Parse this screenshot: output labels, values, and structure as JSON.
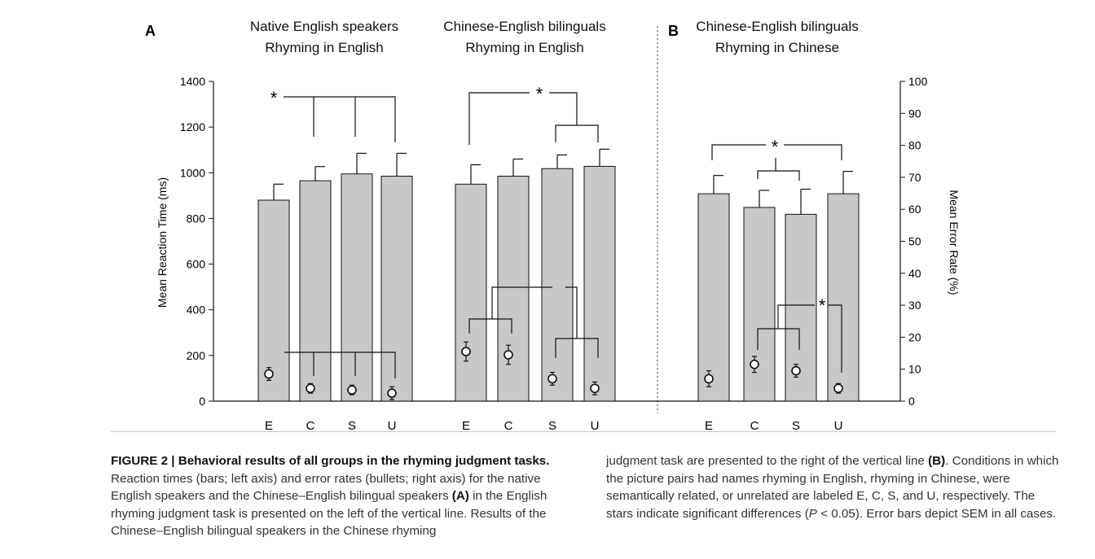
{
  "figure": {
    "panel_a": "A",
    "panel_b": "B",
    "group_titles": [
      {
        "line1": "Native English speakers",
        "line2": "Rhyming in English"
      },
      {
        "line1": "Chinese-English bilinguals",
        "line2": "Rhyming in English"
      },
      {
        "line1": "Chinese-English bilinguals",
        "line2": "Rhyming in Chinese"
      }
    ],
    "left_axis_label": "Mean Reaction Time (ms)",
    "right_axis_label": "Mean Error Rate (%)",
    "significance_marker": "*"
  },
  "chart_data": {
    "type": "bar",
    "left_axis": {
      "label": "Mean Reaction Time (ms)",
      "ylim": [
        0,
        1400
      ],
      "ticks": [
        0,
        200,
        400,
        600,
        800,
        1000,
        1200,
        1400
      ]
    },
    "right_axis": {
      "label": "Mean Error Rate (%)",
      "ylim": [
        0,
        100
      ],
      "ticks": [
        0,
        10,
        20,
        30,
        40,
        50,
        60,
        70,
        80,
        90,
        100
      ]
    },
    "groups": [
      {
        "title": "Native English speakers Rhyming in English",
        "categories": [
          "E",
          "C",
          "S",
          "U"
        ],
        "rt": [
          880,
          965,
          995,
          985
        ],
        "rt_sem": [
          70,
          62,
          90,
          100
        ],
        "error_rate": [
          8.5,
          4,
          3.5,
          2.5
        ],
        "error_sem": [
          2,
          1.5,
          1.5,
          2
        ]
      },
      {
        "title": "Chinese-English bilinguals Rhyming in English",
        "categories": [
          "E",
          "C",
          "S",
          "U"
        ],
        "rt": [
          950,
          985,
          1018,
          1028
        ],
        "rt_sem": [
          85,
          75,
          60,
          75
        ],
        "error_rate": [
          15.5,
          14.5,
          7,
          4
        ],
        "error_sem": [
          3,
          3,
          2,
          2
        ]
      },
      {
        "title": "Chinese-English bilinguals Rhyming in Chinese",
        "categories": [
          "E",
          "C",
          "S",
          "U"
        ],
        "rt": [
          908,
          848,
          818,
          908
        ],
        "rt_sem": [
          80,
          75,
          110,
          98
        ],
        "error_rate": [
          7,
          11.5,
          9.5,
          4
        ],
        "error_sem": [
          2.5,
          2.5,
          2,
          1.5
        ]
      }
    ]
  },
  "caption": {
    "heading": "FIGURE 2 | Behavioral results of all groups in the rhyming judgment tasks.",
    "p1_text1": " Reaction times (bars; left axis) and error rates (bullets; right axis) for the native English speakers and the Chinese–English bilingual speakers ",
    "p1_bold_a": "(A)",
    "p1_text2": " in the English rhyming judgment task is presented on the left of the vertical line. Results of the Chinese–English bilingual speakers in the Chinese rhyming",
    "p2_text1": "judgment task are presented to the right of the vertical line ",
    "p2_bold_b": "(B)",
    "p2_text2": ". Conditions in which the picture pairs had names rhyming in English, rhyming in Chinese, were semantically related, or unrelated are labeled E, C, S, and U, respectively. The stars indicate significant differences (",
    "p2_italic_p": "P",
    "p2_text3": " < 0.05). Error bars depict SEM in all cases."
  }
}
